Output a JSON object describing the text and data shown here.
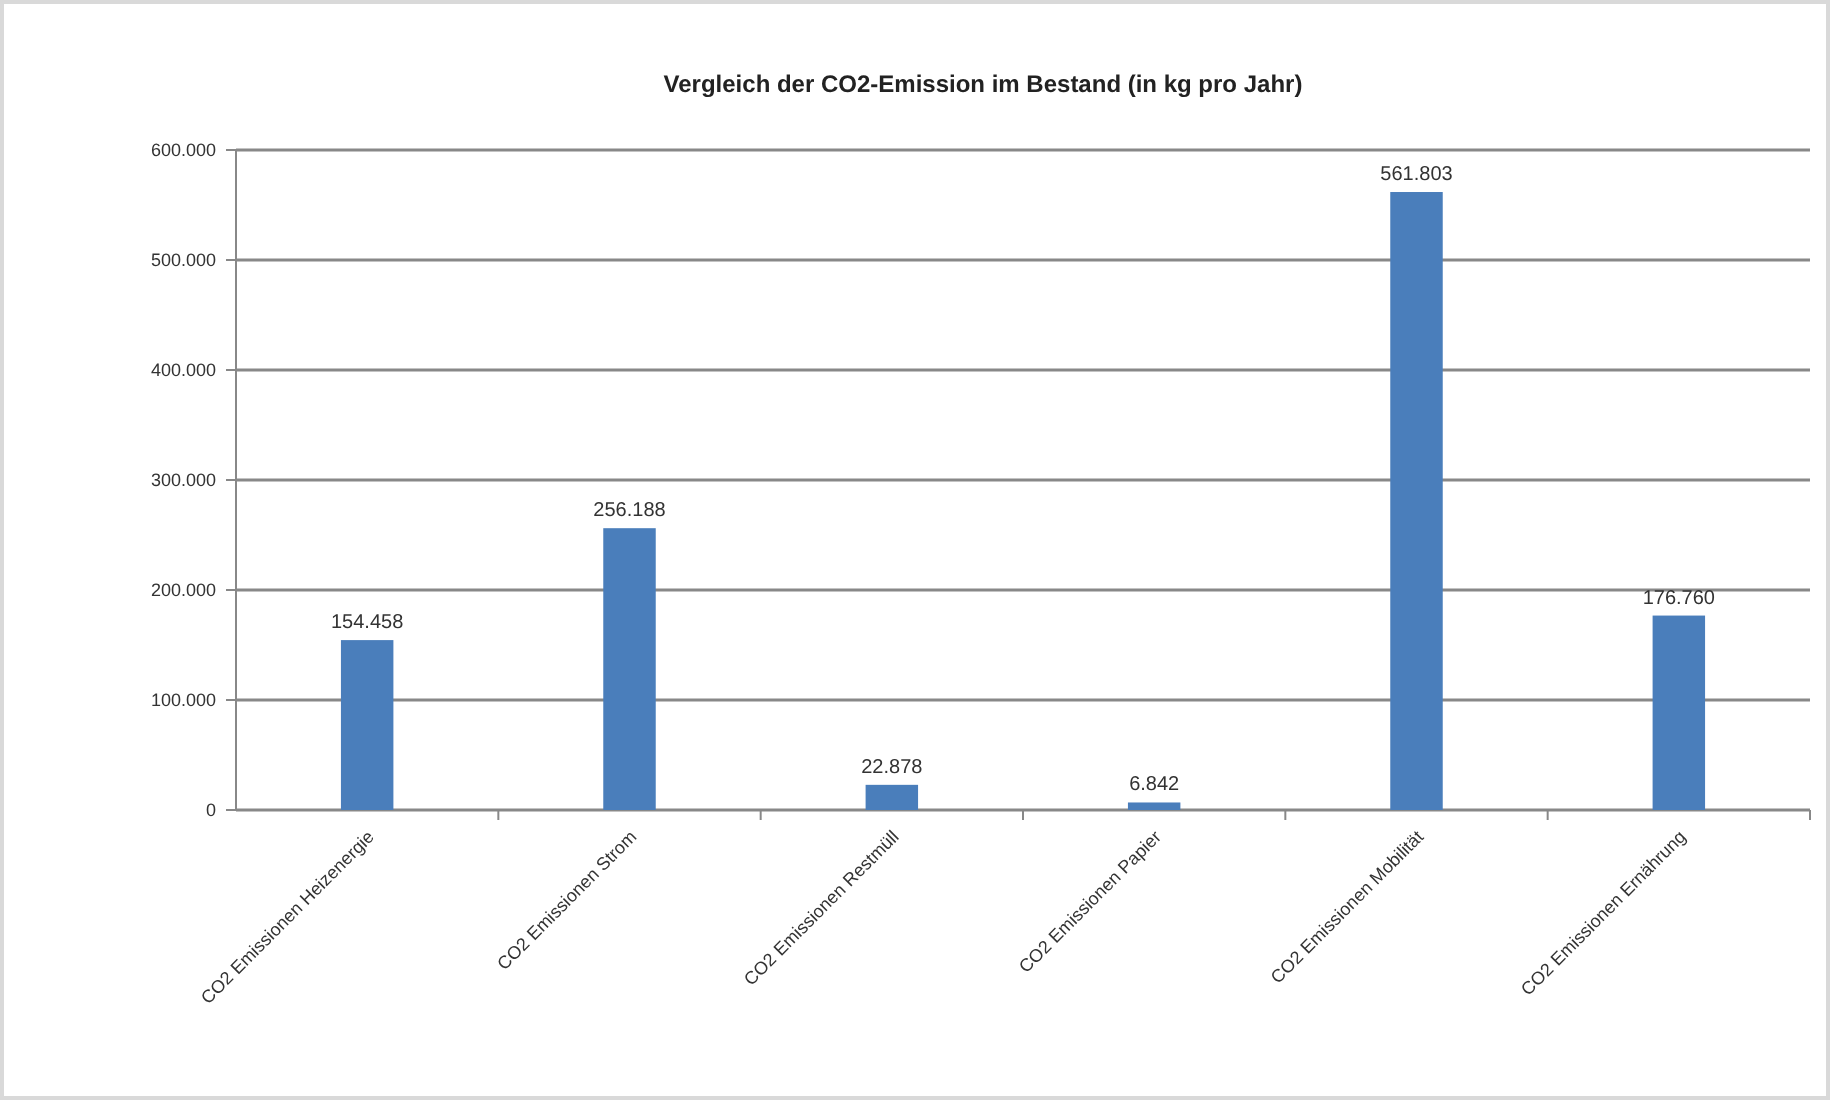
{
  "chart_data": {
    "type": "bar",
    "title": "Vergleich der CO2-Emission im Bestand (in kg pro Jahr)",
    "categories": [
      "CO2 Emissionen Heizenergie",
      "CO2 Emissionen Strom",
      "CO2 Emissionen Restmüll",
      "CO2 Emissionen Papier",
      "CO2 Emissionen Mobilität",
      "CO2 Emissionen Ernährung"
    ],
    "values": [
      154458,
      256188,
      22878,
      6842,
      561803,
      176760
    ],
    "value_labels": [
      "154.458",
      "256.188",
      "22.878",
      "6.842",
      "561.803",
      "176.760"
    ],
    "color": "#4a7ebb",
    "ylim": [
      0,
      600000
    ],
    "yticks": [
      0,
      {
        "value": 100000,
        "label": "100.000"
      },
      {
        "value": 200000,
        "label": "200.000"
      },
      {
        "value": 300000,
        "label": "300.000"
      },
      {
        "value": 400000,
        "label": "400.000"
      },
      {
        "value": 500000,
        "label": "500.000"
      },
      {
        "value": 600000,
        "label": "600.000"
      }
    ],
    "grid": "y"
  }
}
